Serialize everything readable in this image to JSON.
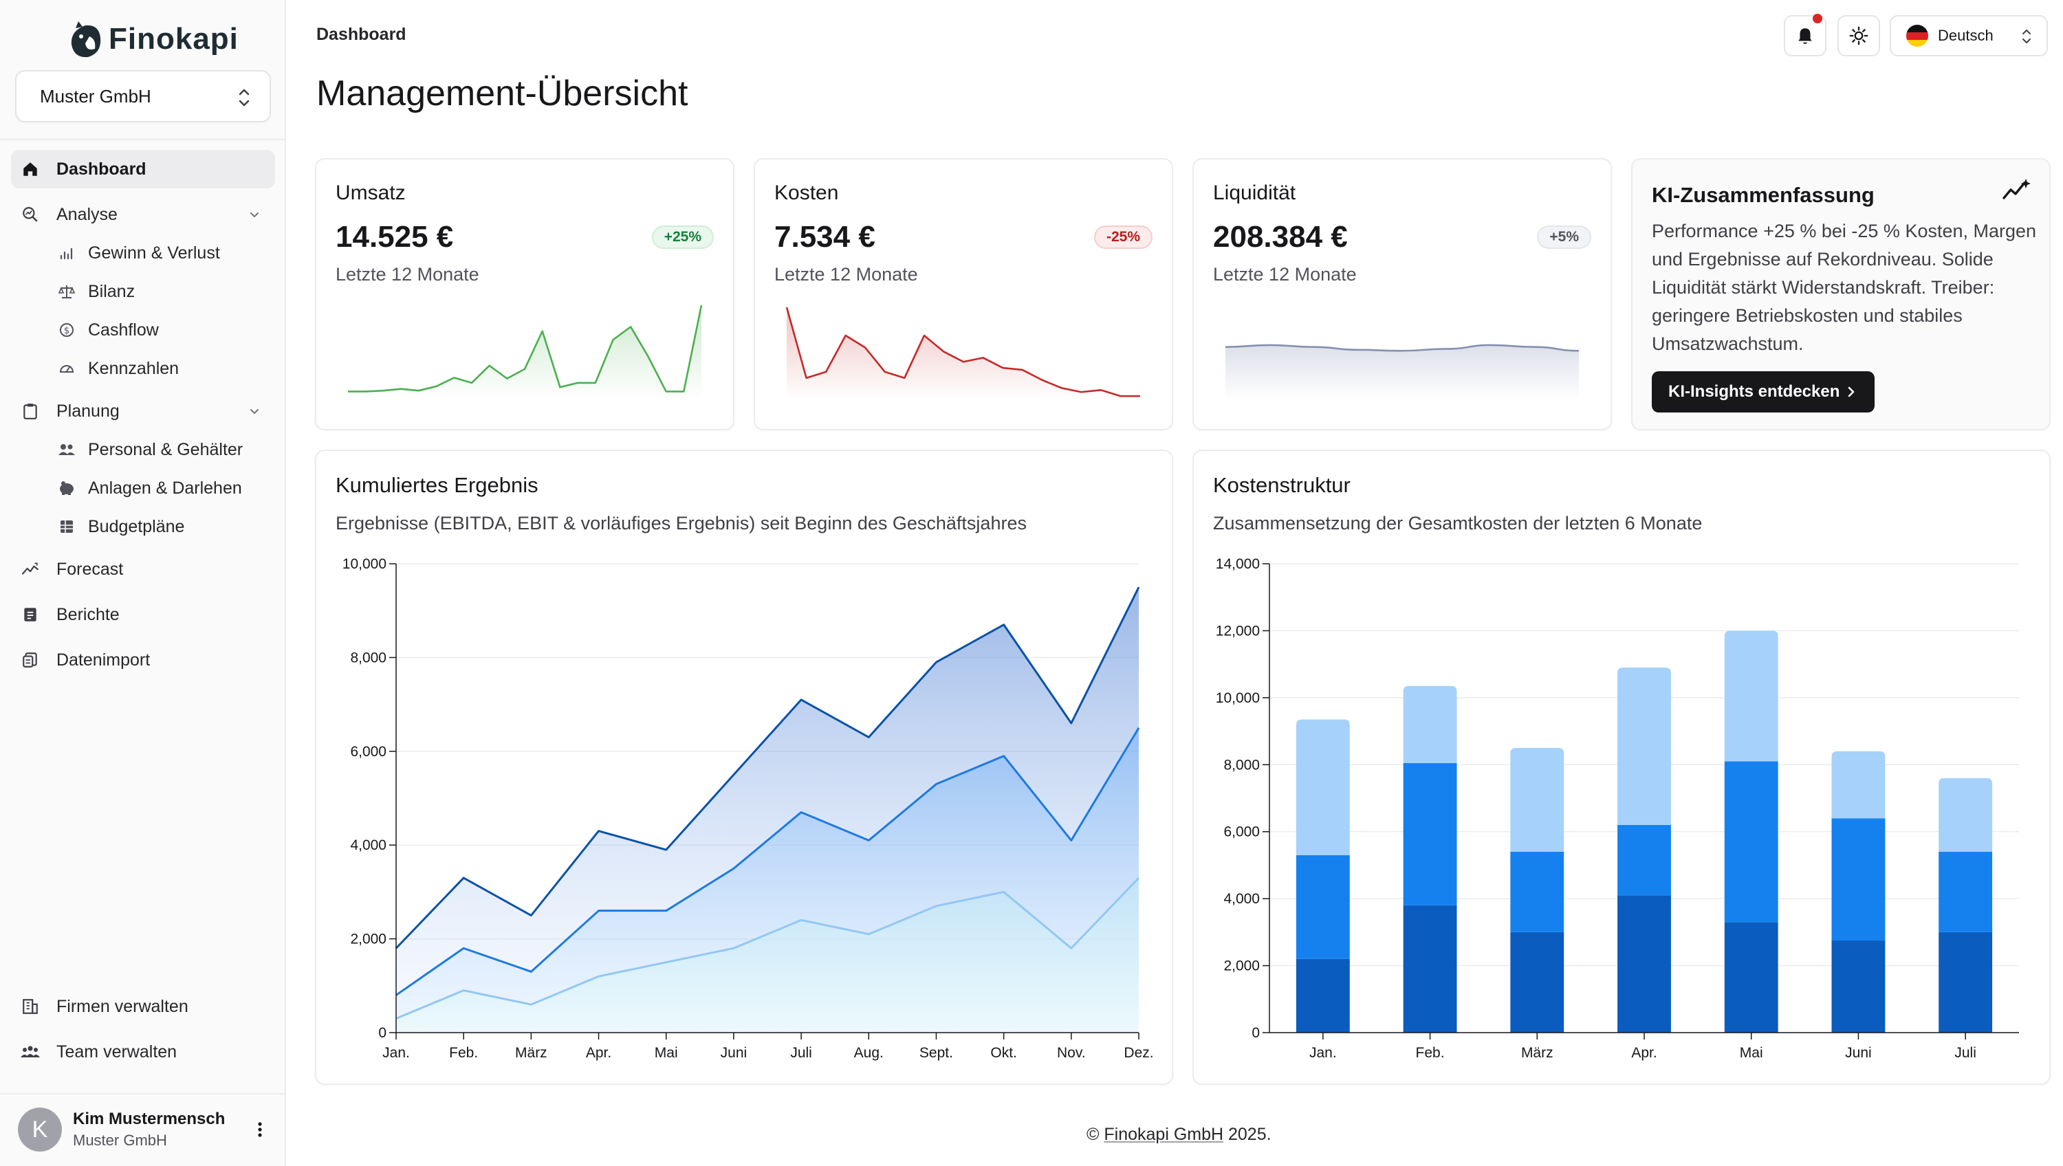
{
  "app": {
    "name": "Finokapi"
  },
  "sidebar": {
    "company": "Muster GmbH",
    "items": [
      {
        "label": "Dashboard",
        "icon": "home-icon"
      },
      {
        "label": "Analyse",
        "icon": "analytics-icon",
        "children": [
          {
            "label": "Gewinn & Verlust",
            "icon": "chart-icon"
          },
          {
            "label": "Bilanz",
            "icon": "scale-icon"
          },
          {
            "label": "Cashflow",
            "icon": "cashflow-icon"
          },
          {
            "label": "Kennzahlen",
            "icon": "gauge-icon"
          }
        ]
      },
      {
        "label": "Planung",
        "icon": "clipboard-icon",
        "children": [
          {
            "label": "Personal & Gehälter",
            "icon": "users-icon"
          },
          {
            "label": "Anlagen & Darlehen",
            "icon": "piggy-bank-icon"
          },
          {
            "label": "Budgetpläne",
            "icon": "table-icon"
          }
        ]
      },
      {
        "label": "Forecast",
        "icon": "trend-icon"
      },
      {
        "label": "Berichte",
        "icon": "report-icon"
      },
      {
        "label": "Datenimport",
        "icon": "import-icon"
      }
    ],
    "bottom_items": [
      {
        "label": "Firmen verwalten",
        "icon": "building-icon"
      },
      {
        "label": "Team verwalten",
        "icon": "team-icon"
      }
    ],
    "user": {
      "initial": "K",
      "name": "Kim Mustermensch",
      "company": "Muster GmbH"
    }
  },
  "header": {
    "breadcrumb": "Dashboard",
    "title": "Management-Übersicht",
    "language": "Deutsch"
  },
  "kpis": [
    {
      "title": "Umsatz",
      "value": "14.525 €",
      "badge": "+25%",
      "sub": "Letzte 12 Monate",
      "color": "#4caf50"
    },
    {
      "title": "Kosten",
      "value": "7.534 €",
      "badge": "-25%",
      "sub": "Letzte 12 Monate",
      "color": "#c62828"
    },
    {
      "title": "Liquidität",
      "value": "208.384 €",
      "badge": "+5%",
      "sub": "Letzte 12 Monate",
      "color": "#8590b0"
    }
  ],
  "ai_summary": {
    "title": "KI-Zusammenfassung",
    "text": "Performance +25 % bei -25 % Kosten, Margen und Ergebnisse auf Rekordniveau. Solide Liquidität stärkt Widerstandskraft. Treiber: geringere Betriebskosten und stabiles Umsatzwachstum.",
    "button": "KI-Insights entdecken"
  },
  "cumulative": {
    "title": "Kumuliertes Ergebnis",
    "subtitle": "Ergebnisse (EBITDA, EBIT & vorläufiges Ergebnis) seit Beginn des Geschäftsjahres"
  },
  "cost_structure": {
    "title": "Kostenstruktur",
    "subtitle": "Zusammensetzung der Gesamtkosten der letzten 6 Monate"
  },
  "footer": {
    "prefix": "© ",
    "company": "Finokapi GmbH",
    "year": " 2025."
  },
  "chart_data": [
    {
      "type": "line",
      "id": "umsatz-sparkline",
      "values": [
        1,
        1,
        1.1,
        1.3,
        1.1,
        1.6,
        2.6,
        2.0,
        4.0,
        2.5,
        3.6,
        8.0,
        1.5,
        2.0,
        2.0,
        7.0,
        8.5,
        5.0,
        1.0,
        1.0,
        11.0
      ]
    },
    {
      "type": "line",
      "id": "kosten-sparkline",
      "values": [
        10,
        3.0,
        3.6,
        7.2,
        6.0,
        3.6,
        3.0,
        7.2,
        5.6,
        4.6,
        5.0,
        4.0,
        3.8,
        2.8,
        2.0,
        1.6,
        1.8,
        1.2,
        1.2
      ]
    },
    {
      "type": "area",
      "id": "liquiditaet-sparkline",
      "values": [
        5.6,
        5.8,
        5.6,
        5.3,
        5.2,
        5.4,
        5.8,
        5.6,
        5.2
      ]
    },
    {
      "type": "area",
      "title": "Kumuliertes Ergebnis",
      "categories": [
        "Jan.",
        "Feb.",
        "März",
        "Apr.",
        "Mai",
        "Juni",
        "Juli",
        "Aug.",
        "Sept.",
        "Okt.",
        "Nov.",
        "Dez."
      ],
      "series": [
        {
          "values": [
            1800,
            3300,
            2500,
            4300,
            3900,
            5500,
            7100,
            6300,
            7900,
            8700,
            6600,
            9500
          ],
          "color": "#0b52a8"
        },
        {
          "values": [
            800,
            1800,
            1300,
            2600,
            2600,
            3500,
            4700,
            4100,
            5300,
            5900,
            4100,
            6500
          ],
          "color": "#1e7ae0"
        },
        {
          "values": [
            300,
            900,
            600,
            1200,
            1500,
            1800,
            2400,
            2100,
            2700,
            3000,
            1800,
            3300
          ],
          "color": "#93c7f2"
        }
      ],
      "ylim": [
        0,
        10000
      ],
      "yticks": [
        "0",
        "2,000",
        "4,000",
        "6,000",
        "8,000",
        "10,000"
      ],
      "grid": true
    },
    {
      "type": "bar",
      "title": "Kostenstruktur",
      "stacked": true,
      "categories": [
        "Jan.",
        "Feb.",
        "März",
        "Apr.",
        "Mai",
        "Juni",
        "Juli"
      ],
      "series": [
        {
          "values": [
            2200,
            3800,
            3000,
            4100,
            3300,
            2750,
            3000
          ],
          "color": "#0a5cbf"
        },
        {
          "values": [
            3100,
            4250,
            2400,
            2100,
            4800,
            3650,
            2400
          ],
          "color": "#1481ef"
        },
        {
          "values": [
            4050,
            2300,
            3100,
            4700,
            3900,
            2000,
            2200
          ],
          "color": "#a6d1fb"
        }
      ],
      "ylim": [
        0,
        14000
      ],
      "yticks": [
        "0",
        "2,000",
        "4,000",
        "6,000",
        "8,000",
        "10,000",
        "12,000",
        "14,000"
      ],
      "grid": true
    }
  ]
}
